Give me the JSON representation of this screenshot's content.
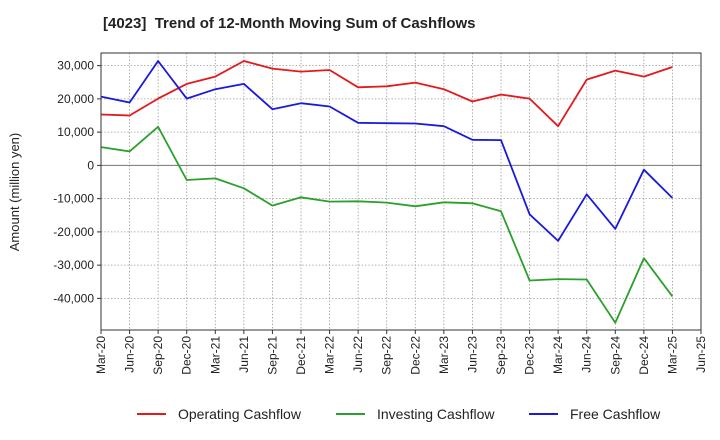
{
  "chart_data": {
    "type": "line",
    "title": "[4023]  Trend of 12-Month Moving Sum of Cashflows",
    "xlabel": "",
    "ylabel": "Amount (million yen)",
    "x": [
      "Mar-20",
      "Jun-20",
      "Sep-20",
      "Dec-20",
      "Mar-21",
      "Jun-21",
      "Sep-21",
      "Dec-21",
      "Mar-22",
      "Jun-22",
      "Sep-22",
      "Dec-22",
      "Mar-23",
      "Jun-23",
      "Sep-23",
      "Dec-23",
      "Mar-24",
      "Jun-24",
      "Sep-24",
      "Dec-24",
      "Mar-25",
      "Jun-25"
    ],
    "yticks": [
      30000,
      20000,
      10000,
      0,
      -10000,
      -20000,
      -30000,
      -40000
    ],
    "ytick_labels": [
      "30,000",
      "20,000",
      "10,000",
      "0",
      "-10,000",
      "-20,000",
      "-30,000",
      "-40,000"
    ],
    "ylim": [
      -49500,
      33800
    ],
    "grid": true,
    "legend_position": "bottom",
    "series": [
      {
        "name": "Operating Cashflow",
        "color": "#e31a1c",
        "values": [
          15300,
          15000,
          20100,
          24500,
          26700,
          31400,
          29100,
          28200,
          28700,
          23500,
          23800,
          24900,
          22900,
          19200,
          21300,
          20100,
          11800,
          25800,
          28500,
          26700,
          29600,
          null
        ]
      },
      {
        "name": "Investing Cashflow",
        "color": "#2ca02c",
        "values": [
          5500,
          4200,
          11600,
          -4400,
          -3900,
          -6900,
          -12100,
          -9600,
          -10900,
          -10800,
          -11200,
          -12300,
          -11100,
          -11400,
          -13800,
          -34600,
          -34200,
          -34300,
          -47300,
          -27900,
          -39400,
          null
        ]
      },
      {
        "name": "Free Cashflow",
        "color": "#1a1adc",
        "values": [
          20700,
          18900,
          31400,
          20100,
          22900,
          24500,
          16900,
          18700,
          17700,
          12800,
          12700,
          12600,
          11800,
          7700,
          7600,
          -14700,
          -22700,
          -8700,
          -19100,
          -1300,
          -9800,
          null
        ]
      }
    ]
  }
}
